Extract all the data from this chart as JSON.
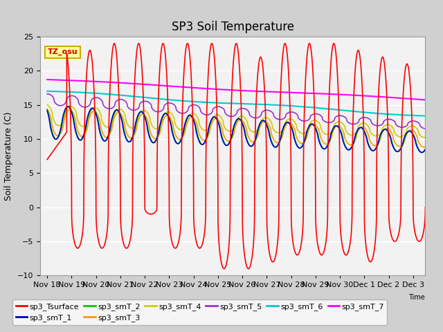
{
  "title": "SP3 Soil Temperature",
  "ylabel": "Soil Temperature (C)",
  "tz_label": "TZ_osu",
  "ylim": [
    -10,
    25
  ],
  "xlim": [
    -0.3,
    15.5
  ],
  "xtick_positions": [
    0,
    1,
    2,
    3,
    4,
    5,
    6,
    7,
    8,
    9,
    10,
    11,
    12,
    13,
    14,
    15
  ],
  "xtick_labels": [
    "Nov 18",
    "Nov 19",
    "Nov 20",
    "Nov 21",
    "Nov 22",
    "Nov 23",
    "Nov 24",
    "Nov 25",
    "Nov 26",
    "Nov 27",
    "Nov 28",
    "Nov 29",
    "Nov 30",
    "Dec 1",
    "Dec 2",
    "Dec 3"
  ],
  "ytick_values": [
    -10,
    -5,
    0,
    5,
    10,
    15,
    20,
    25
  ],
  "colors": {
    "sp3_Tsurface": "#FF0000",
    "sp3_smT_1": "#0000CC",
    "sp3_smT_2": "#00CC00",
    "sp3_smT_3": "#FF9900",
    "sp3_smT_4": "#CCCC00",
    "sp3_smT_5": "#9933CC",
    "sp3_smT_6": "#00CCCC",
    "sp3_smT_7": "#FF00FF"
  },
  "fig_bg": "#D0D0D0",
  "plot_bg": "#F2F2F2",
  "grid_color": "#FFFFFF",
  "title_fontsize": 12,
  "label_fontsize": 9,
  "tick_fontsize": 8,
  "legend_fontsize": 8
}
